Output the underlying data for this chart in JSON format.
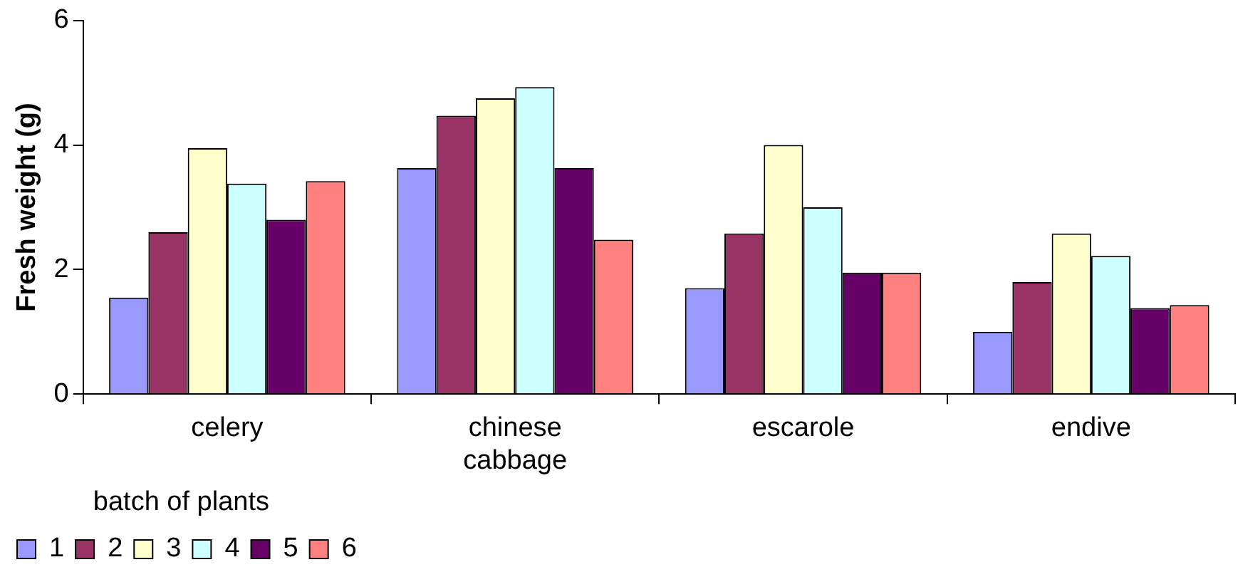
{
  "chart_data": {
    "type": "bar",
    "ylabel": "Fresh weight (g)",
    "legend_title": "batch of plants",
    "categories": [
      "celery",
      "chinese cabbage",
      "escarole",
      "endive"
    ],
    "series": [
      {
        "name": "1",
        "color": "#9999ff",
        "values": [
          1.55,
          3.63,
          1.7,
          1.0
        ]
      },
      {
        "name": "2",
        "color": "#993366",
        "values": [
          2.6,
          4.47,
          2.58,
          1.8
        ]
      },
      {
        "name": "3",
        "color": "#ffffcc",
        "values": [
          3.95,
          4.75,
          4.0,
          2.58
        ]
      },
      {
        "name": "4",
        "color": "#ccffff",
        "values": [
          3.38,
          4.93,
          3.0,
          2.22
        ]
      },
      {
        "name": "5",
        "color": "#660066",
        "values": [
          2.8,
          3.63,
          1.95,
          1.38
        ]
      },
      {
        "name": "6",
        "color": "#ff8080",
        "values": [
          3.42,
          2.48,
          1.95,
          1.43
        ]
      }
    ],
    "ylim": [
      0,
      6
    ],
    "yticks": [
      0,
      2,
      4,
      6
    ],
    "grid": false,
    "legend": "bottom left"
  }
}
